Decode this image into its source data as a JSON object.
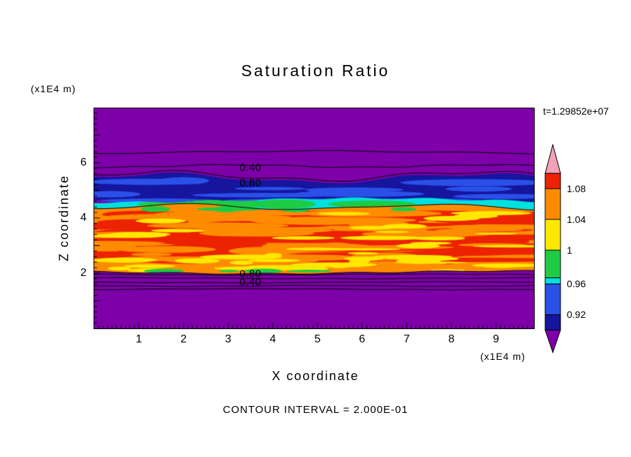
{
  "chart_data": {
    "type": "heatmap",
    "title": "Saturation Ratio",
    "xlabel": "X coordinate",
    "ylabel": "Z coordinate",
    "x_unit": "(x1E4 m)",
    "y_unit": "(x1E4 m)",
    "time_label": "t=1.29852e+07",
    "contour_note": "CONTOUR INTERVAL = 2.000E-01",
    "contour_interval": 0.2,
    "xlim": [
      0,
      9.85
    ],
    "ylim": [
      0,
      7.97
    ],
    "x_ticks": [
      1,
      2,
      3,
      4,
      5,
      6,
      7,
      8,
      9
    ],
    "y_ticks": [
      2,
      4,
      6
    ],
    "grid": false,
    "legend_position": "right-colorbar",
    "colors": {
      "purple": "#7D00A8",
      "navy": "#15159E",
      "blue": "#2B50E8",
      "cyan": "#00E0DC",
      "green": "#1ECC44",
      "yellow": "#FFE800",
      "orange": "#FF8C00",
      "red": "#EC2200",
      "pink": "#F2A2B6"
    },
    "bands": {
      "navy": {
        "z_from": 4.56,
        "z_to": 5.44,
        "value_range": "0.88-0.92"
      },
      "cyan": {
        "z_from": 4.4,
        "z_to": 4.64,
        "value_range": "0.96"
      },
      "orange": {
        "z_from": 2.03,
        "z_to": 4.4,
        "value_range": "1.00-1.12"
      }
    },
    "contour_lines_z": [
      6.38,
      5.88,
      1.95,
      1.82,
      1.67,
      1.54,
      1.42
    ],
    "contour_labels": [
      {
        "text": "0.40",
        "x": 3.5,
        "z": 5.82
      },
      {
        "text": "0.80",
        "x": 3.5,
        "z": 5.26
      },
      {
        "text": "0.80",
        "x": 3.5,
        "z": 1.97
      },
      {
        "text": "0.40",
        "x": 3.5,
        "z": 1.66
      }
    ],
    "colorbar": {
      "arrow_top_color": "#F2A2B6",
      "arrow_bottom_color": "#7D00A8",
      "labels": [
        "1.08",
        "1.04",
        "1",
        "0.96",
        "0.92"
      ],
      "segments": [
        {
          "color": "#EC2200",
          "span": 0.5,
          "label_below": "1.08"
        },
        {
          "color": "#FF8C00",
          "span": 1,
          "label_below": "1.04"
        },
        {
          "color": "#FFE800",
          "span": 1,
          "label_below": "1"
        },
        {
          "color": "#1ECC44",
          "span": 0.9,
          "label_below": null
        },
        {
          "color": "#00E0DC",
          "span": 0.2,
          "label_below": "0.96"
        },
        {
          "color": "#2B50E8",
          "span": 1,
          "label_below": "0.92"
        },
        {
          "color": "#15159E",
          "span": 0.5,
          "label_below": null
        }
      ]
    }
  }
}
